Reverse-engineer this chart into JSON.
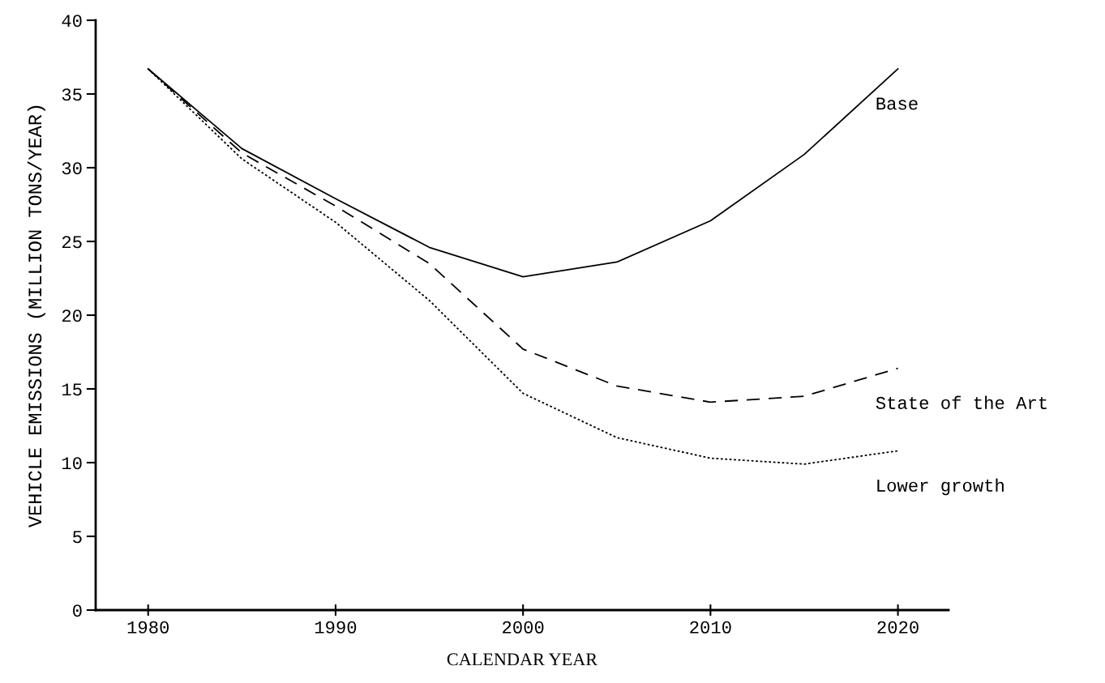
{
  "chart_data": {
    "type": "line",
    "xlabel": "CALENDAR YEAR",
    "ylabel": "VEHICLE EMISSIONS (MILLION TONS/YEAR)",
    "x": [
      1980,
      1985,
      1990,
      1995,
      2000,
      2005,
      2010,
      2015,
      2020
    ],
    "series": [
      {
        "name": "Base",
        "color": "#000000",
        "line_style": "solid",
        "values": [
          36.7,
          31.3,
          27.9,
          24.6,
          22.6,
          23.6,
          26.4,
          30.9,
          36.7
        ]
      },
      {
        "name": "State of the Art",
        "color": "#000000",
        "line_style": "dashed",
        "values": [
          36.7,
          31.0,
          27.4,
          23.5,
          17.7,
          15.2,
          14.1,
          14.5,
          16.4
        ]
      },
      {
        "name": "Lower growth",
        "color": "#000000",
        "line_style": "dotted",
        "values": [
          36.7,
          30.6,
          26.3,
          21.0,
          14.7,
          11.7,
          10.3,
          9.9,
          10.8
        ]
      }
    ],
    "xlim": [
      1977.2,
      2022.7
    ],
    "ylim": [
      0,
      40
    ],
    "xticks": [
      1980,
      1990,
      2000,
      2010,
      2020
    ],
    "yticks": [
      0,
      5,
      10,
      15,
      20,
      25,
      30,
      35,
      40
    ],
    "grid": false,
    "legend": false,
    "marker": "none"
  }
}
